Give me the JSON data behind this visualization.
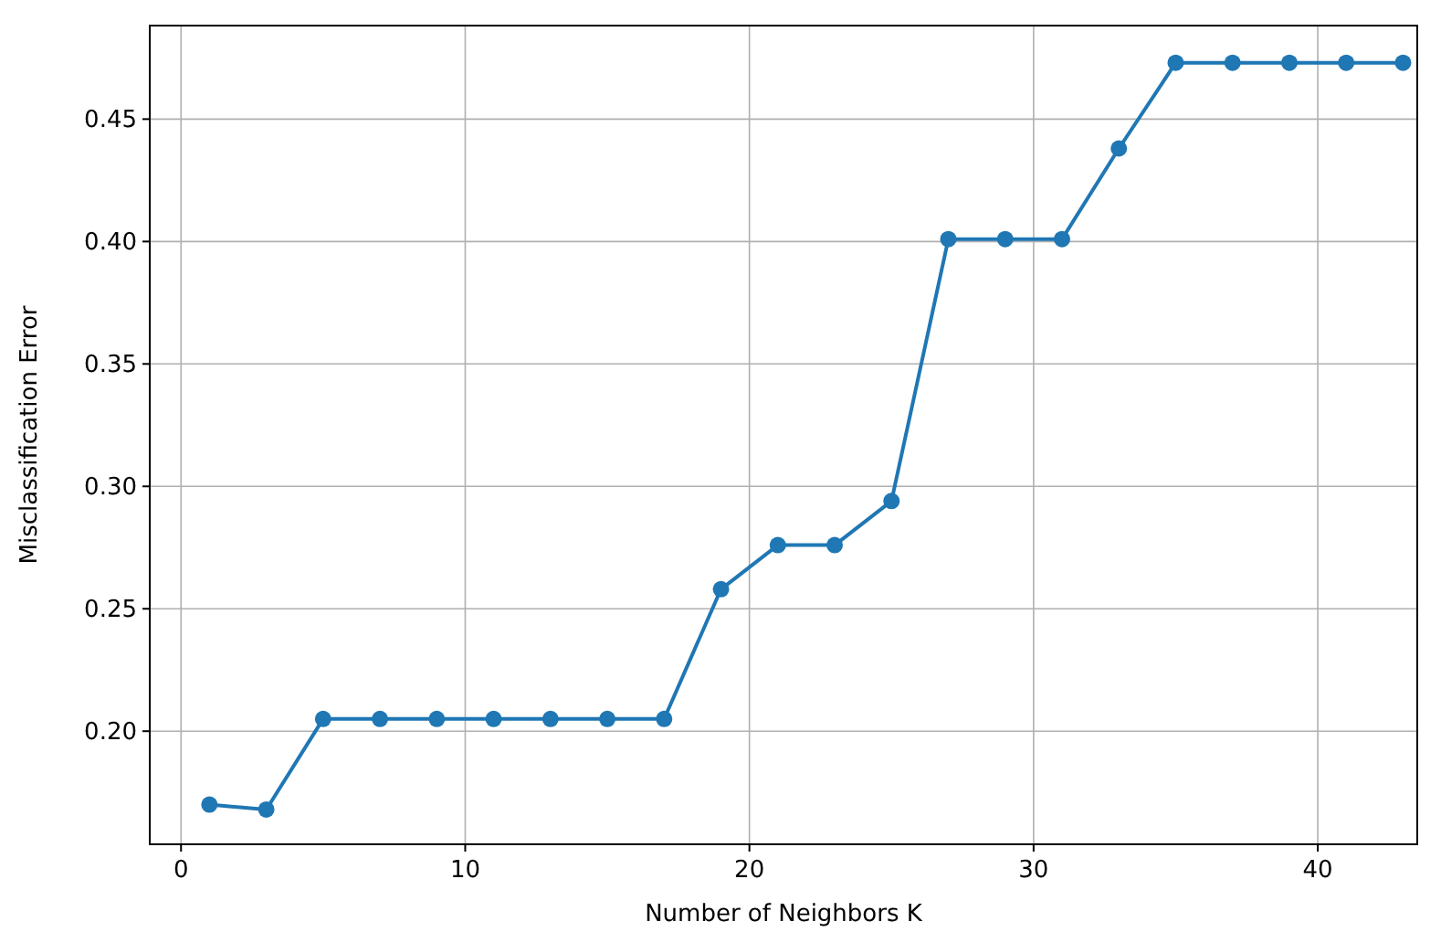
{
  "chart_data": {
    "type": "line",
    "xlabel": "Number of Neighbors K",
    "ylabel": "Misclassification Error",
    "x": [
      1,
      3,
      5,
      7,
      9,
      11,
      13,
      15,
      17,
      19,
      21,
      23,
      25,
      27,
      29,
      31,
      33,
      35,
      37,
      39,
      41,
      43
    ],
    "series": [
      {
        "color": "#1f77b4",
        "values": [
          0.17,
          0.168,
          0.205,
          0.205,
          0.205,
          0.205,
          0.205,
          0.205,
          0.205,
          0.258,
          0.276,
          0.276,
          0.294,
          0.401,
          0.401,
          0.401,
          0.438,
          0.473,
          0.473,
          0.473,
          0.473,
          0.473
        ]
      }
    ],
    "xlim": [
      -1.1,
      43.5
    ],
    "ylim": [
      0.1538,
      0.4882
    ],
    "xticks": [
      0,
      10,
      20,
      30,
      40
    ],
    "yticks": [
      {
        "value": 0.2,
        "label": "0.20"
      },
      {
        "value": 0.25,
        "label": "0.25"
      },
      {
        "value": 0.3,
        "label": "0.30"
      },
      {
        "value": 0.35,
        "label": "0.35"
      },
      {
        "value": 0.4,
        "label": "0.40"
      },
      {
        "value": 0.45,
        "label": "0.45"
      }
    ],
    "grid": true,
    "marker": "circle",
    "line_style": "solid"
  }
}
